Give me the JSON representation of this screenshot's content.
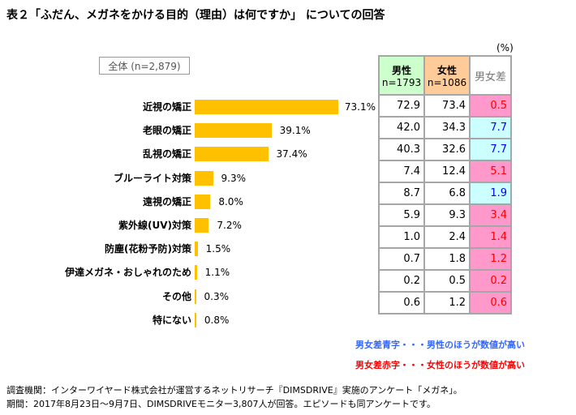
{
  "title": "表２「ふだん、メガネをかける目的（理由）は何ですか」 についての回答",
  "unit": "(%)",
  "chart_data": {
    "type": "bar",
    "title": "表２「ふだん、メガネをかける目的（理由）は何ですか」 についての回答",
    "series_label": "全体 (n=2,879)",
    "categories": [
      "近視の矯正",
      "老眼の矯正",
      "乱視の矯正",
      "ブルーライト対策",
      "遠視の矯正",
      "紫外線(UV)対策",
      "防塵(花粉予防)対策",
      "伊達メガネ・おしゃれのため",
      "その他",
      "特にない"
    ],
    "values": [
      73.1,
      39.1,
      37.4,
      9.3,
      8.0,
      7.2,
      1.5,
      1.1,
      0.3,
      0.8
    ],
    "value_labels": [
      "73.1%",
      "39.1%",
      "37.4%",
      "9.3%",
      "8.0%",
      "7.2%",
      "1.5%",
      "1.1%",
      "0.3%",
      "0.8%"
    ],
    "bar_color": "#ffc000"
  },
  "table": {
    "headers": [
      {
        "label": "男性",
        "n": "n=1793",
        "color": "#ccffcc"
      },
      {
        "label": "女性",
        "n": "n=1086",
        "color": "#ffcc99"
      },
      {
        "label": "男女差"
      }
    ],
    "rows": [
      [
        "72.9",
        "73.4",
        "0.5",
        "f"
      ],
      [
        "42.0",
        "34.3",
        "7.7",
        "m"
      ],
      [
        "40.3",
        "32.6",
        "7.7",
        "m"
      ],
      [
        "7.4",
        "12.4",
        "5.1",
        "f"
      ],
      [
        "8.7",
        "6.8",
        "1.9",
        "m"
      ],
      [
        "5.9",
        "9.3",
        "3.4",
        "f"
      ],
      [
        "1.0",
        "2.4",
        "1.4",
        "f"
      ],
      [
        "0.7",
        "1.8",
        "1.2",
        "f"
      ],
      [
        "0.2",
        "0.5",
        "0.2",
        "f"
      ],
      [
        "0.6",
        "1.2",
        "0.6",
        "f"
      ]
    ]
  },
  "legend": {
    "blue": "男女差青字・・・男性のほうが数値が高い",
    "red": "男女差赤字・・・女性のほうが数値が高い"
  },
  "footer": [
    "調査機関：インターワイヤード株式会社が運営するネットリサーチ『DIMSDRIVE』実施のアンケート「メガネ」。",
    "期間：2017年8月23日～9月7日、DIMSDRIVEモニター3,807人が回答。エピソードも同アンケートです。"
  ]
}
